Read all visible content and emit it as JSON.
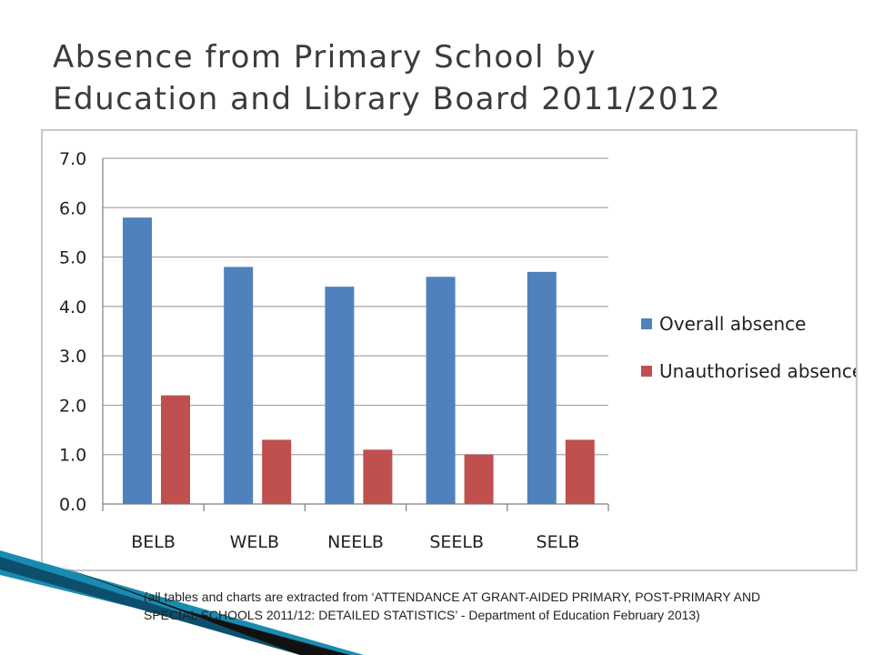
{
  "slide": {
    "title_line1": "Absence from Primary School by",
    "title_line2": "Education and Library Board 2011/2012",
    "footnote": "(all tables and charts are extracted from ‘ATTENDANCE AT GRANT-AIDED PRIMARY, POST-PRIMARY AND SPECIAL SCHOOLS 2011/12: DETAILED STATISTICS’ - Department of Education February 2013)"
  },
  "chart_data": {
    "type": "bar",
    "title": "",
    "xlabel": "",
    "ylabel": "",
    "categories": [
      "BELB",
      "WELB",
      "NEELB",
      "SEELB",
      "SELB"
    ],
    "series": [
      {
        "name": "Overall absence",
        "values": [
          5.8,
          4.8,
          4.4,
          4.6,
          4.7
        ],
        "color": "#4f81bd"
      },
      {
        "name": "Unauthorised absence",
        "values": [
          2.2,
          1.3,
          1.1,
          1.0,
          1.3
        ],
        "color": "#c0504d"
      }
    ],
    "ylim": [
      0,
      7
    ],
    "yticks": [
      "0.0",
      "1.0",
      "2.0",
      "3.0",
      "4.0",
      "5.0",
      "6.0",
      "7.0"
    ],
    "grid": true,
    "legend_position": "right"
  },
  "colors": {
    "title": "#3b3b3b",
    "gridline": "#a6a6a6",
    "decor_teal": "#1a8bb0"
  }
}
